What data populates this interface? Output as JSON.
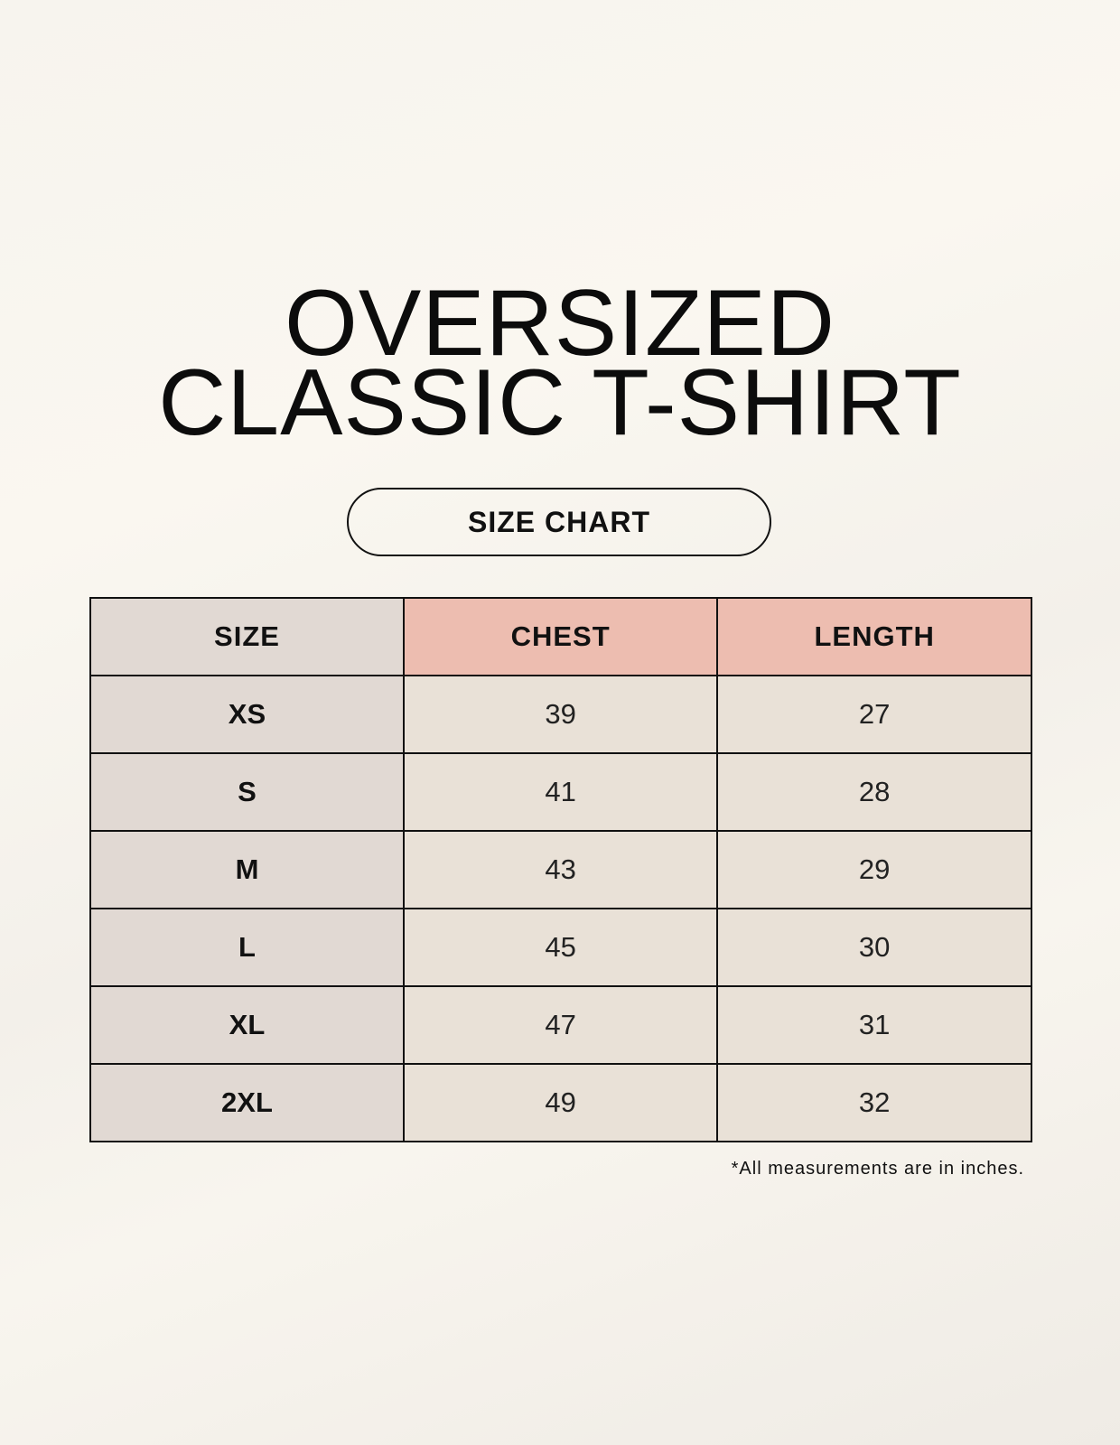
{
  "title": {
    "line1": "OVERSIZED",
    "line2": "CLASSIC T-SHIRT"
  },
  "badge": "SIZE CHART",
  "table": {
    "headers": [
      "SIZE",
      "CHEST",
      "LENGTH"
    ],
    "rows": [
      [
        "XS",
        "39",
        "27"
      ],
      [
        "S",
        "41",
        "28"
      ],
      [
        "M",
        "43",
        "29"
      ],
      [
        "L",
        "45",
        "30"
      ],
      [
        "XL",
        "47",
        "31"
      ],
      [
        "2XL",
        "49",
        "32"
      ]
    ]
  },
  "footnote": "*All measurements are in inches.",
  "colors": {
    "size_column": "#e1d9d3",
    "header_accent": "#edbdb0",
    "cell": "#e9e1d7"
  }
}
